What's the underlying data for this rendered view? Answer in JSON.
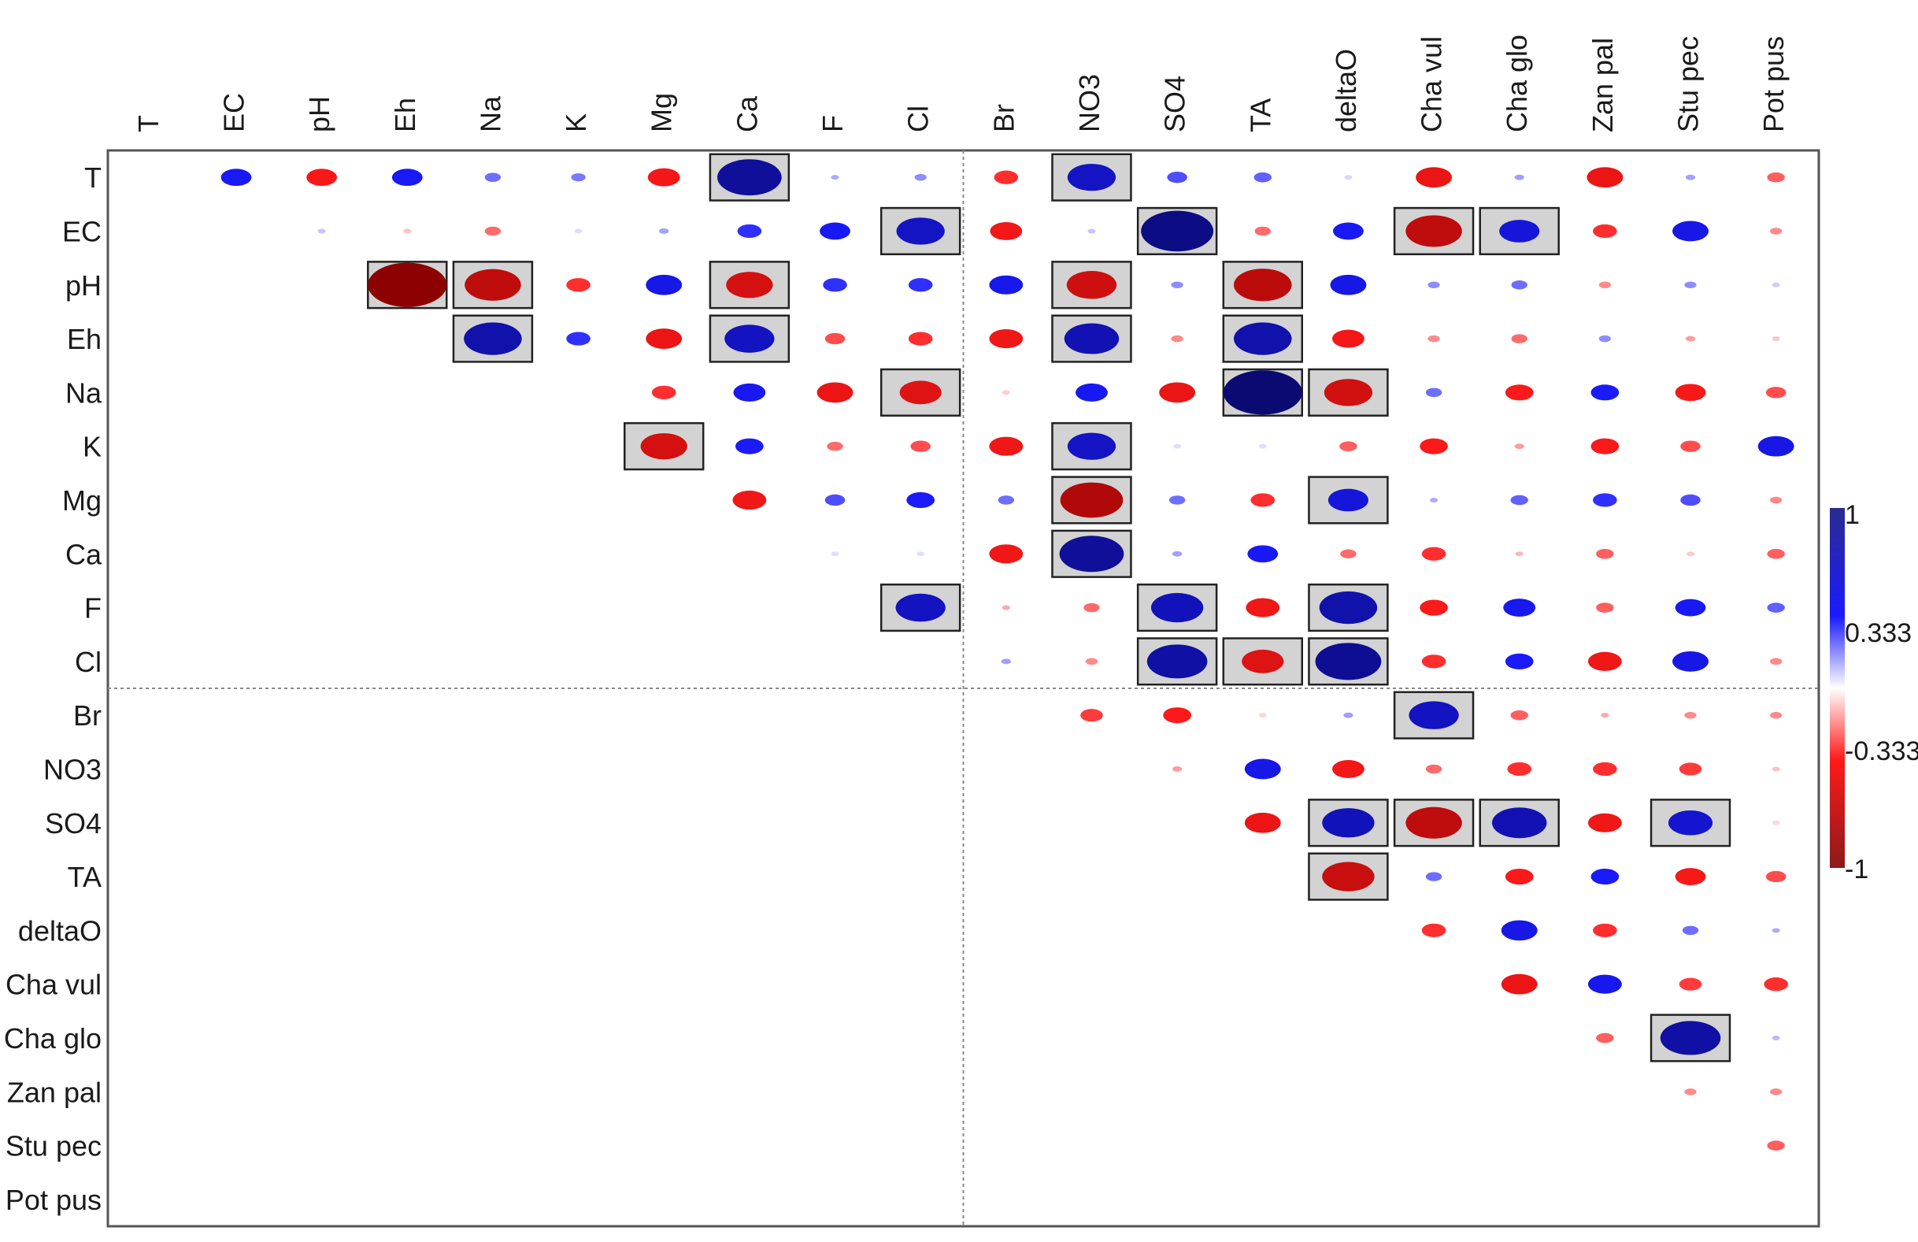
{
  "chart_data": {
    "type": "heatmap",
    "title": "",
    "labels": [
      "T",
      "EC",
      "pH",
      "Eh",
      "Na",
      "K",
      "Mg",
      "Ca",
      "F",
      "Cl",
      "Br",
      "NO3",
      "SO4",
      "TA",
      "deltaO",
      "Cha vul",
      "Cha glo",
      "Zan pal",
      "Stu pec",
      "Pot pus"
    ],
    "colorbar": {
      "max_label": "1",
      "mid_hi_label": "0.333",
      "mid_lo_label": "-0.333",
      "min_label": "-1",
      "range": [
        -1,
        1
      ]
    },
    "colors": {
      "positive": "#1a1aff",
      "negative": "#ff1a1a",
      "strong_positive": "#0a0a6e",
      "strong_negative": "#8b0000",
      "box_fill": "#d3d3d3"
    },
    "grid_split_after": "Cl",
    "cells": [
      {
        "r": "T",
        "c": "EC",
        "v": 0.38
      },
      {
        "r": "T",
        "c": "pH",
        "v": -0.38
      },
      {
        "r": "T",
        "c": "Eh",
        "v": 0.38
      },
      {
        "r": "T",
        "c": "Na",
        "v": 0.2
      },
      {
        "r": "T",
        "c": "K",
        "v": 0.18
      },
      {
        "r": "T",
        "c": "Mg",
        "v": -0.4
      },
      {
        "r": "T",
        "c": "Ca",
        "v": 0.8,
        "s": 1
      },
      {
        "r": "T",
        "c": "F",
        "v": 0.1
      },
      {
        "r": "T",
        "c": "Cl",
        "v": 0.15
      },
      {
        "r": "T",
        "c": "Br",
        "v": -0.3
      },
      {
        "r": "T",
        "c": "NO3",
        "v": 0.6,
        "s": 1
      },
      {
        "r": "T",
        "c": "SO4",
        "v": 0.25
      },
      {
        "r": "T",
        "c": "TA",
        "v": 0.22
      },
      {
        "r": "T",
        "c": "deltaO",
        "v": 0.03
      },
      {
        "r": "T",
        "c": "Cha vul",
        "v": -0.45
      },
      {
        "r": "T",
        "c": "Cha glo",
        "v": 0.12
      },
      {
        "r": "T",
        "c": "Zan pal",
        "v": -0.45
      },
      {
        "r": "T",
        "c": "Stu pec",
        "v": 0.12
      },
      {
        "r": "T",
        "c": "Pot pus",
        "v": -0.22
      },
      {
        "r": "EC",
        "c": "pH",
        "v": 0.06
      },
      {
        "r": "EC",
        "c": "Eh",
        "v": -0.06
      },
      {
        "r": "EC",
        "c": "Na",
        "v": -0.2
      },
      {
        "r": "EC",
        "c": "K",
        "v": 0.02
      },
      {
        "r": "EC",
        "c": "Mg",
        "v": 0.12
      },
      {
        "r": "EC",
        "c": "Ca",
        "v": 0.3
      },
      {
        "r": "EC",
        "c": "F",
        "v": 0.38
      },
      {
        "r": "EC",
        "c": "Cl",
        "v": 0.6,
        "s": 1
      },
      {
        "r": "EC",
        "c": "Br",
        "v": -0.4
      },
      {
        "r": "EC",
        "c": "NO3",
        "v": 0.06
      },
      {
        "r": "EC",
        "c": "SO4",
        "v": 0.9,
        "s": 1
      },
      {
        "r": "EC",
        "c": "TA",
        "v": -0.2
      },
      {
        "r": "EC",
        "c": "deltaO",
        "v": 0.38
      },
      {
        "r": "EC",
        "c": "Cha vul",
        "v": -0.7,
        "s": 1
      },
      {
        "r": "EC",
        "c": "Cha glo",
        "v": 0.5,
        "s": 1
      },
      {
        "r": "EC",
        "c": "Zan pal",
        "v": -0.3
      },
      {
        "r": "EC",
        "c": "Stu pec",
        "v": 0.45
      },
      {
        "r": "EC",
        "c": "Pot pus",
        "v": -0.15
      },
      {
        "r": "pH",
        "c": "Eh",
        "v": -0.98,
        "s": 1
      },
      {
        "r": "pH",
        "c": "Na",
        "v": -0.7,
        "s": 1
      },
      {
        "r": "pH",
        "c": "K",
        "v": -0.3
      },
      {
        "r": "pH",
        "c": "Mg",
        "v": 0.45
      },
      {
        "r": "pH",
        "c": "Ca",
        "v": -0.58,
        "s": 1
      },
      {
        "r": "pH",
        "c": "F",
        "v": 0.3
      },
      {
        "r": "pH",
        "c": "Cl",
        "v": 0.3
      },
      {
        "r": "pH",
        "c": "Br",
        "v": 0.42
      },
      {
        "r": "pH",
        "c": "NO3",
        "v": -0.62,
        "s": 1
      },
      {
        "r": "pH",
        "c": "SO4",
        "v": 0.15
      },
      {
        "r": "pH",
        "c": "TA",
        "v": -0.72,
        "s": 1
      },
      {
        "r": "pH",
        "c": "deltaO",
        "v": 0.45
      },
      {
        "r": "pH",
        "c": "Cha vul",
        "v": 0.15
      },
      {
        "r": "pH",
        "c": "Cha glo",
        "v": 0.2
      },
      {
        "r": "pH",
        "c": "Zan pal",
        "v": -0.15
      },
      {
        "r": "pH",
        "c": "Stu pec",
        "v": 0.15
      },
      {
        "r": "pH",
        "c": "Pot pus",
        "v": 0.05
      },
      {
        "r": "Eh",
        "c": "Na",
        "v": 0.72,
        "s": 1
      },
      {
        "r": "Eh",
        "c": "K",
        "v": 0.3
      },
      {
        "r": "Eh",
        "c": "Mg",
        "v": -0.45
      },
      {
        "r": "Eh",
        "c": "Ca",
        "v": 0.62,
        "s": 1
      },
      {
        "r": "Eh",
        "c": "F",
        "v": -0.25
      },
      {
        "r": "Eh",
        "c": "Cl",
        "v": -0.3
      },
      {
        "r": "Eh",
        "c": "Br",
        "v": -0.42
      },
      {
        "r": "Eh",
        "c": "NO3",
        "v": 0.68,
        "s": 1
      },
      {
        "r": "Eh",
        "c": "SO4",
        "v": -0.15
      },
      {
        "r": "Eh",
        "c": "TA",
        "v": 0.72,
        "s": 1
      },
      {
        "r": "Eh",
        "c": "deltaO",
        "v": -0.4
      },
      {
        "r": "Eh",
        "c": "Cha vul",
        "v": -0.15
      },
      {
        "r": "Eh",
        "c": "Cha glo",
        "v": -0.2
      },
      {
        "r": "Eh",
        "c": "Zan pal",
        "v": 0.15
      },
      {
        "r": "Eh",
        "c": "Stu pec",
        "v": -0.12
      },
      {
        "r": "Eh",
        "c": "Pot pus",
        "v": -0.05
      },
      {
        "r": "Na",
        "c": "Mg",
        "v": -0.3
      },
      {
        "r": "Na",
        "c": "Ca",
        "v": 0.4
      },
      {
        "r": "Na",
        "c": "F",
        "v": -0.45
      },
      {
        "r": "Na",
        "c": "Cl",
        "v": -0.52,
        "s": 1
      },
      {
        "r": "Na",
        "c": "Br",
        "v": -0.04
      },
      {
        "r": "Na",
        "c": "NO3",
        "v": 0.4
      },
      {
        "r": "Na",
        "c": "SO4",
        "v": -0.45
      },
      {
        "r": "Na",
        "c": "TA",
        "v": 0.98,
        "s": 1
      },
      {
        "r": "Na",
        "c": "deltaO",
        "v": -0.6,
        "s": 1
      },
      {
        "r": "Na",
        "c": "Cha vul",
        "v": 0.2
      },
      {
        "r": "Na",
        "c": "Cha glo",
        "v": -0.35
      },
      {
        "r": "Na",
        "c": "Zan pal",
        "v": 0.35
      },
      {
        "r": "Na",
        "c": "Stu pec",
        "v": -0.38
      },
      {
        "r": "Na",
        "c": "Pot pus",
        "v": -0.25
      },
      {
        "r": "K",
        "c": "Mg",
        "v": -0.58,
        "s": 1
      },
      {
        "r": "K",
        "c": "Ca",
        "v": 0.35
      },
      {
        "r": "K",
        "c": "F",
        "v": -0.2
      },
      {
        "r": "K",
        "c": "Cl",
        "v": -0.25
      },
      {
        "r": "K",
        "c": "Br",
        "v": -0.42
      },
      {
        "r": "K",
        "c": "NO3",
        "v": 0.6,
        "s": 1
      },
      {
        "r": "K",
        "c": "SO4",
        "v": 0.02
      },
      {
        "r": "K",
        "c": "TA",
        "v": 0.02
      },
      {
        "r": "K",
        "c": "deltaO",
        "v": -0.22
      },
      {
        "r": "K",
        "c": "Cha vul",
        "v": -0.35
      },
      {
        "r": "K",
        "c": "Cha glo",
        "v": -0.12
      },
      {
        "r": "K",
        "c": "Zan pal",
        "v": -0.35
      },
      {
        "r": "K",
        "c": "Stu pec",
        "v": -0.25
      },
      {
        "r": "K",
        "c": "Pot pus",
        "v": 0.45
      },
      {
        "r": "Mg",
        "c": "Ca",
        "v": -0.42
      },
      {
        "r": "Mg",
        "c": "F",
        "v": 0.25
      },
      {
        "r": "Mg",
        "c": "Cl",
        "v": 0.35
      },
      {
        "r": "Mg",
        "c": "Br",
        "v": 0.2
      },
      {
        "r": "Mg",
        "c": "NO3",
        "v": -0.78,
        "s": 1
      },
      {
        "r": "Mg",
        "c": "SO4",
        "v": 0.2
      },
      {
        "r": "Mg",
        "c": "TA",
        "v": -0.3
      },
      {
        "r": "Mg",
        "c": "deltaO",
        "v": 0.5,
        "s": 1
      },
      {
        "r": "Mg",
        "c": "Cha vul",
        "v": 0.1
      },
      {
        "r": "Mg",
        "c": "Cha glo",
        "v": 0.22
      },
      {
        "r": "Mg",
        "c": "Zan pal",
        "v": 0.3
      },
      {
        "r": "Mg",
        "c": "Stu pec",
        "v": 0.25
      },
      {
        "r": "Mg",
        "c": "Pot pus",
        "v": -0.15
      },
      {
        "r": "Ca",
        "c": "F",
        "v": 0.02
      },
      {
        "r": "Ca",
        "c": "Cl",
        "v": 0.02
      },
      {
        "r": "Ca",
        "c": "Br",
        "v": -0.42
      },
      {
        "r": "Ca",
        "c": "NO3",
        "v": 0.8,
        "s": 1
      },
      {
        "r": "Ca",
        "c": "SO4",
        "v": 0.12
      },
      {
        "r": "Ca",
        "c": "TA",
        "v": 0.38
      },
      {
        "r": "Ca",
        "c": "deltaO",
        "v": -0.2
      },
      {
        "r": "Ca",
        "c": "Cha vul",
        "v": -0.3
      },
      {
        "r": "Ca",
        "c": "Cha glo",
        "v": -0.08
      },
      {
        "r": "Ca",
        "c": "Zan pal",
        "v": -0.22
      },
      {
        "r": "Ca",
        "c": "Stu pec",
        "v": -0.05
      },
      {
        "r": "Ca",
        "c": "Pot pus",
        "v": -0.22
      },
      {
        "r": "F",
        "c": "Cl",
        "v": 0.62,
        "s": 1
      },
      {
        "r": "F",
        "c": "Br",
        "v": -0.1
      },
      {
        "r": "F",
        "c": "NO3",
        "v": -0.2
      },
      {
        "r": "F",
        "c": "SO4",
        "v": 0.65,
        "s": 1
      },
      {
        "r": "F",
        "c": "TA",
        "v": -0.42
      },
      {
        "r": "F",
        "c": "deltaO",
        "v": 0.72,
        "s": 1
      },
      {
        "r": "F",
        "c": "Cha vul",
        "v": -0.35
      },
      {
        "r": "F",
        "c": "Cha glo",
        "v": 0.4
      },
      {
        "r": "F",
        "c": "Zan pal",
        "v": -0.22
      },
      {
        "r": "F",
        "c": "Stu pec",
        "v": 0.38
      },
      {
        "r": "F",
        "c": "Pot pus",
        "v": 0.22
      },
      {
        "r": "Cl",
        "c": "Br",
        "v": 0.12
      },
      {
        "r": "Cl",
        "c": "NO3",
        "v": -0.15
      },
      {
        "r": "Cl",
        "c": "SO4",
        "v": 0.75,
        "s": 1
      },
      {
        "r": "Cl",
        "c": "TA",
        "v": -0.52,
        "s": 1
      },
      {
        "r": "Cl",
        "c": "deltaO",
        "v": 0.82,
        "s": 1
      },
      {
        "r": "Cl",
        "c": "Cha vul",
        "v": -0.3
      },
      {
        "r": "Cl",
        "c": "Cha glo",
        "v": 0.35
      },
      {
        "r": "Cl",
        "c": "Zan pal",
        "v": -0.42
      },
      {
        "r": "Cl",
        "c": "Stu pec",
        "v": 0.45
      },
      {
        "r": "Cl",
        "c": "Pot pus",
        "v": -0.15
      },
      {
        "r": "Br",
        "c": "NO3",
        "v": -0.28
      },
      {
        "r": "Br",
        "c": "SO4",
        "v": -0.35
      },
      {
        "r": "Br",
        "c": "TA",
        "v": -0.03
      },
      {
        "r": "Br",
        "c": "deltaO",
        "v": 0.12
      },
      {
        "r": "Br",
        "c": "Cha vul",
        "v": 0.62,
        "s": 1
      },
      {
        "r": "Br",
        "c": "Cha glo",
        "v": -0.22
      },
      {
        "r": "Br",
        "c": "Zan pal",
        "v": -0.1
      },
      {
        "r": "Br",
        "c": "Stu pec",
        "v": -0.15
      },
      {
        "r": "Br",
        "c": "Pot pus",
        "v": -0.15
      },
      {
        "r": "NO3",
        "c": "SO4",
        "v": -0.12
      },
      {
        "r": "NO3",
        "c": "TA",
        "v": 0.45
      },
      {
        "r": "NO3",
        "c": "deltaO",
        "v": -0.4
      },
      {
        "r": "NO3",
        "c": "Cha vul",
        "v": -0.2
      },
      {
        "r": "NO3",
        "c": "Cha glo",
        "v": -0.3
      },
      {
        "r": "NO3",
        "c": "Zan pal",
        "v": -0.3
      },
      {
        "r": "NO3",
        "c": "Stu pec",
        "v": -0.28
      },
      {
        "r": "NO3",
        "c": "Pot pus",
        "v": -0.06
      },
      {
        "r": "SO4",
        "c": "TA",
        "v": -0.45
      },
      {
        "r": "SO4",
        "c": "deltaO",
        "v": 0.65,
        "s": 1
      },
      {
        "r": "SO4",
        "c": "Cha vul",
        "v": -0.7,
        "s": 1
      },
      {
        "r": "SO4",
        "c": "Cha glo",
        "v": 0.68,
        "s": 1
      },
      {
        "r": "SO4",
        "c": "Zan pal",
        "v": -0.42
      },
      {
        "r": "SO4",
        "c": "Stu pec",
        "v": 0.55,
        "s": 1
      },
      {
        "r": "SO4",
        "c": "Pot pus",
        "v": -0.02
      },
      {
        "r": "TA",
        "c": "deltaO",
        "v": -0.65,
        "s": 1
      },
      {
        "r": "TA",
        "c": "Cha vul",
        "v": 0.2
      },
      {
        "r": "TA",
        "c": "Cha glo",
        "v": -0.35
      },
      {
        "r": "TA",
        "c": "Zan pal",
        "v": 0.35
      },
      {
        "r": "TA",
        "c": "Stu pec",
        "v": -0.38
      },
      {
        "r": "TA",
        "c": "Pot pus",
        "v": -0.25
      },
      {
        "r": "deltaO",
        "c": "Cha vul",
        "v": -0.3
      },
      {
        "r": "deltaO",
        "c": "Cha glo",
        "v": 0.45
      },
      {
        "r": "deltaO",
        "c": "Zan pal",
        "v": -0.3
      },
      {
        "r": "deltaO",
        "c": "Stu pec",
        "v": 0.2
      },
      {
        "r": "deltaO",
        "c": "Pot pus",
        "v": 0.1
      },
      {
        "r": "Cha vul",
        "c": "Cha glo",
        "v": -0.45
      },
      {
        "r": "Cha vul",
        "c": "Zan pal",
        "v": 0.42
      },
      {
        "r": "Cha vul",
        "c": "Stu pec",
        "v": -0.28
      },
      {
        "r": "Cha vul",
        "c": "Pot pus",
        "v": -0.3
      },
      {
        "r": "Cha glo",
        "c": "Zan pal",
        "v": -0.22
      },
      {
        "r": "Cha glo",
        "c": "Stu pec",
        "v": 0.75,
        "s": 1
      },
      {
        "r": "Cha glo",
        "c": "Pot pus",
        "v": 0.08
      },
      {
        "r": "Zan pal",
        "c": "Stu pec",
        "v": -0.15
      },
      {
        "r": "Zan pal",
        "c": "Pot pus",
        "v": -0.15
      },
      {
        "r": "Stu pec",
        "c": "Pot pus",
        "v": -0.22
      }
    ]
  }
}
